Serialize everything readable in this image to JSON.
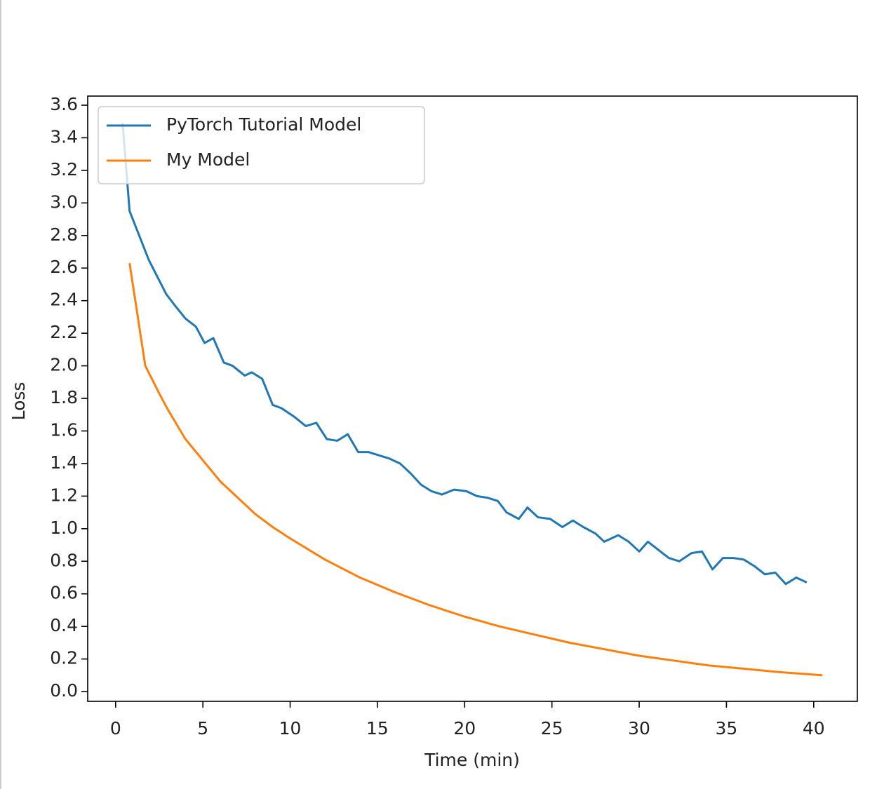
{
  "chart_data": {
    "type": "line",
    "xlabel": "Time (min)",
    "ylabel": "Loss",
    "xlim": [
      -1.6,
      42.5
    ],
    "ylim": [
      -0.06,
      3.656
    ],
    "xticks": [
      0,
      5,
      10,
      15,
      20,
      25,
      30,
      35,
      40
    ],
    "yticks": [
      {
        "value": 0,
        "label": "0.0"
      },
      0.2,
      0.4,
      0.6,
      0.8,
      {
        "value": 1,
        "label": "1.0"
      },
      1.2,
      1.4,
      1.6,
      1.8,
      {
        "value": 2,
        "label": "2.0"
      },
      2.2,
      2.4,
      2.6,
      2.8,
      {
        "value": 3,
        "label": "3.0"
      },
      3.2,
      3.4,
      3.6
    ],
    "legend": "upper left",
    "grid": false,
    "series": [
      {
        "name": "PyTorch Tutorial Model",
        "color": "#1f77b4",
        "x": [
          0.4,
          0.8,
          1.9,
          2.9,
          3.4,
          4.0,
          4.6,
          5.1,
          5.6,
          6.2,
          6.7,
          7.4,
          7.8,
          8.4,
          9.0,
          9.5,
          10.2,
          10.9,
          11.5,
          12.1,
          12.7,
          13.3,
          13.9,
          14.5,
          15.1,
          15.7,
          16.3,
          16.9,
          17.5,
          18.1,
          18.7,
          19.4,
          20.1,
          20.7,
          21.3,
          21.9,
          22.4,
          23.1,
          23.6,
          24.2,
          24.9,
          25.6,
          26.2,
          26.8,
          27.5,
          28.0,
          28.8,
          29.4,
          30.0,
          30.5,
          31.1,
          31.7,
          32.3,
          33.0,
          33.6,
          34.2,
          34.8,
          35.4,
          36.0,
          36.6,
          37.2,
          37.8,
          38.4,
          39.0,
          39.6
        ],
        "values": [
          3.49,
          2.95,
          2.65,
          2.44,
          2.37,
          2.29,
          2.24,
          2.14,
          2.17,
          2.02,
          2.0,
          1.94,
          1.96,
          1.92,
          1.76,
          1.74,
          1.69,
          1.63,
          1.65,
          1.55,
          1.54,
          1.58,
          1.47,
          1.47,
          1.45,
          1.43,
          1.4,
          1.34,
          1.27,
          1.23,
          1.21,
          1.24,
          1.23,
          1.2,
          1.19,
          1.17,
          1.1,
          1.06,
          1.13,
          1.07,
          1.06,
          1.01,
          1.05,
          1.01,
          0.97,
          0.92,
          0.96,
          0.92,
          0.86,
          0.92,
          0.87,
          0.82,
          0.8,
          0.85,
          0.86,
          0.75,
          0.82,
          0.82,
          0.81,
          0.77,
          0.72,
          0.73,
          0.66,
          0.7,
          0.67
        ]
      },
      {
        "name": "My Model",
        "color": "#ff7f0e",
        "x": [
          0.8,
          1.7,
          2.5,
          3.0,
          4.0,
          5.0,
          6.0,
          7.0,
          8.0,
          9.0,
          10.0,
          12.0,
          14.0,
          16.0,
          18.0,
          20.0,
          22.0,
          24.0,
          26.0,
          28.0,
          30.0,
          32.0,
          34.0,
          36.0,
          38.0,
          40.5
        ],
        "values": [
          2.63,
          2.0,
          1.83,
          1.73,
          1.55,
          1.42,
          1.29,
          1.19,
          1.09,
          1.01,
          0.94,
          0.81,
          0.7,
          0.61,
          0.53,
          0.46,
          0.4,
          0.35,
          0.3,
          0.26,
          0.22,
          0.19,
          0.16,
          0.14,
          0.12,
          0.1
        ]
      }
    ]
  }
}
